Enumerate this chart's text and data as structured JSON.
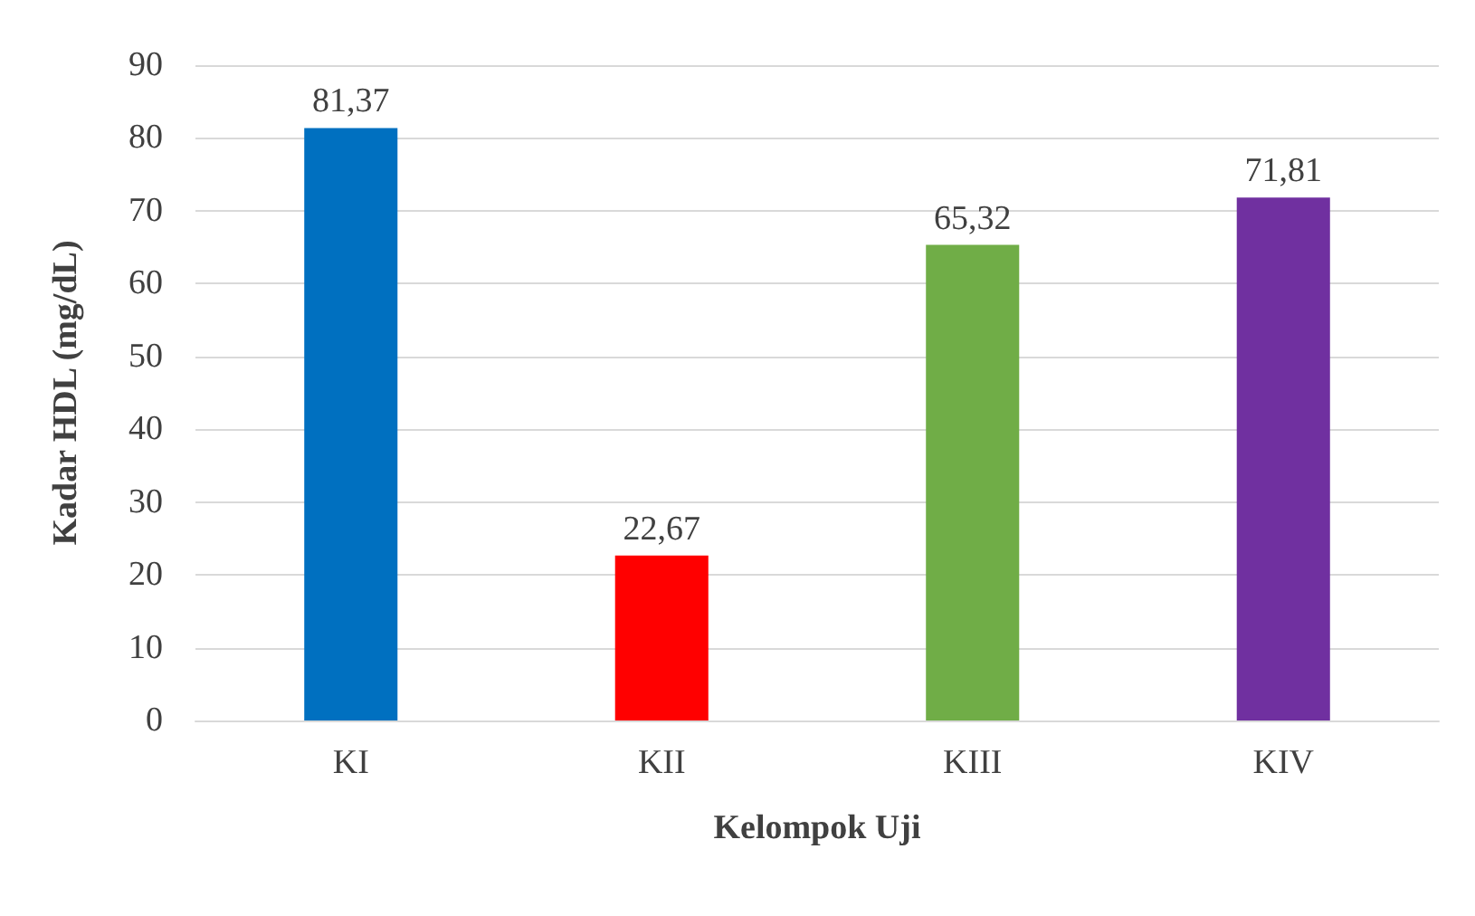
{
  "chart_data": {
    "type": "bar",
    "xlabel": "Kelompok Uji",
    "ylabel": "Kadar HDL (mg/dL)",
    "categories": [
      "KI",
      "KII",
      "KIII",
      "KIV"
    ],
    "values": [
      81.37,
      22.67,
      65.32,
      71.81
    ],
    "colors": [
      "#0070c0",
      "#ff0000",
      "#70ad47",
      "#7030a0"
    ],
    "value_labels": [
      "81,37",
      "22,67",
      "65,32",
      "71,81"
    ],
    "ylim": [
      0,
      90
    ],
    "yticks": [
      0,
      10,
      20,
      30,
      40,
      50,
      60,
      70,
      80,
      90
    ],
    "grid": "y"
  }
}
